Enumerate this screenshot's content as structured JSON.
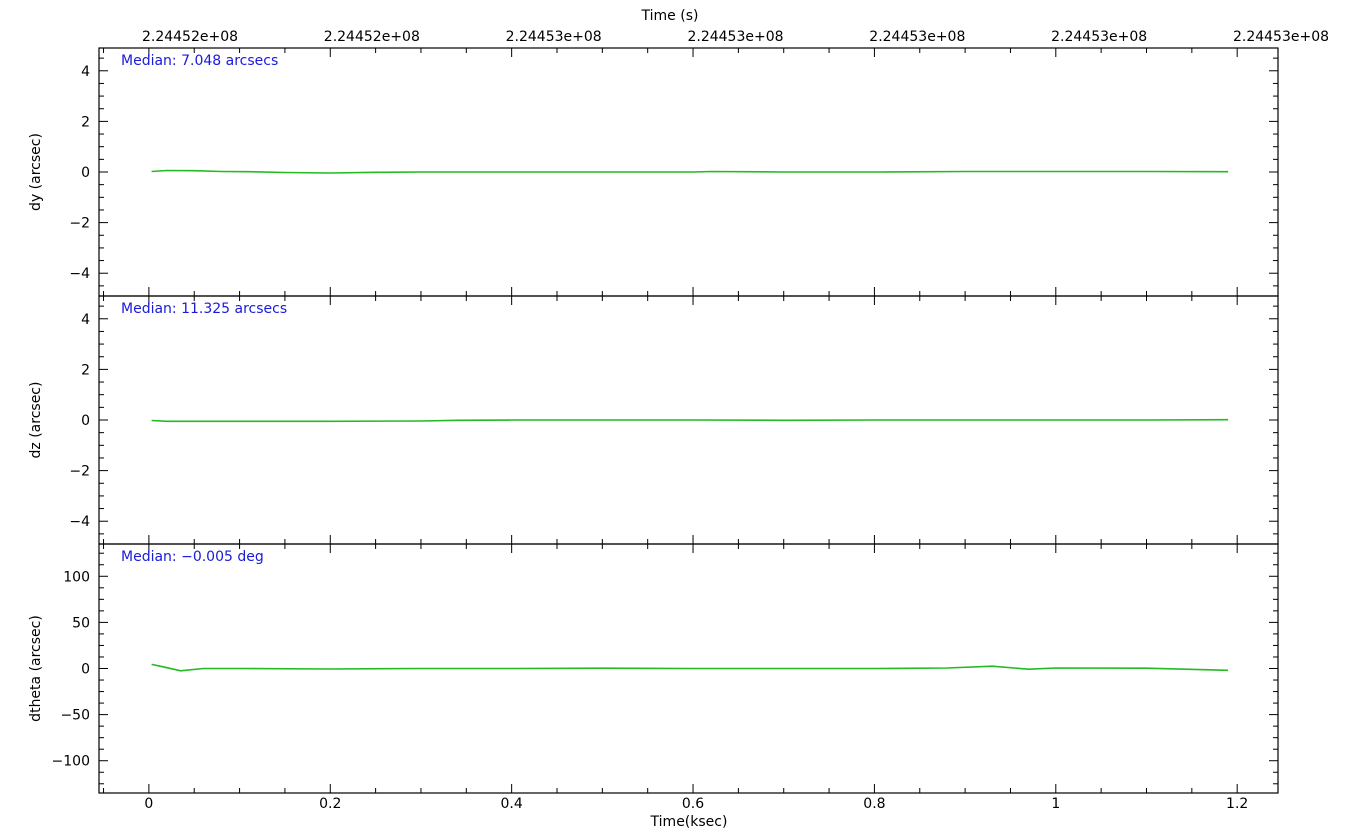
{
  "chart_data": {
    "type": "line",
    "top_axis": {
      "title": "Time (s)",
      "tick_labels": [
        "2.24452e+08",
        "2.24452e+08",
        "2.24453e+08",
        "2.24453e+08",
        "2.24453e+08",
        "2.24453e+08",
        "2.24453e+08"
      ]
    },
    "xlabel": "Time(ksec)",
    "xlim": [
      -0.055,
      1.245
    ],
    "xticks": [
      0,
      0.2,
      0.4,
      0.6,
      0.8,
      1,
      1.2
    ],
    "xtick_labels": [
      "0",
      "0.2",
      "0.4",
      "0.6",
      "0.8",
      "1",
      "1.2"
    ],
    "line_color": "#22bb22",
    "median_color": "#1a1adb",
    "panels": [
      {
        "ylabel": "dy (arcsec)",
        "median_text": "Median: 7.048 arcsecs",
        "ylim": [
          -4.9,
          4.9
        ],
        "yticks": [
          4,
          2,
          0,
          -2,
          -4
        ],
        "ytick_labels": [
          "4",
          "2",
          "0",
          "−2",
          "−4"
        ],
        "x": [
          0.003,
          0.02,
          0.05,
          0.08,
          0.11,
          0.15,
          0.2,
          0.25,
          0.3,
          0.4,
          0.5,
          0.6,
          0.62,
          0.7,
          0.8,
          0.9,
          1.0,
          1.1,
          1.19
        ],
        "y": [
          0.02,
          0.06,
          0.05,
          0.02,
          0.01,
          -0.02,
          -0.04,
          -0.01,
          0.0,
          0.0,
          0.0,
          0.0,
          0.02,
          0.0,
          0.0,
          0.02,
          0.02,
          0.02,
          0.01
        ]
      },
      {
        "ylabel": "dz (arcsec)",
        "median_text": "Median: 11.325 arcsecs",
        "ylim": [
          -4.9,
          4.9
        ],
        "yticks": [
          4,
          2,
          0,
          -2,
          -4
        ],
        "ytick_labels": [
          "4",
          "2",
          "0",
          "−2",
          "−4"
        ],
        "x": [
          0.003,
          0.02,
          0.1,
          0.2,
          0.3,
          0.34,
          0.4,
          0.5,
          0.6,
          0.7,
          0.8,
          0.9,
          1.0,
          1.1,
          1.19
        ],
        "y": [
          -0.02,
          -0.05,
          -0.05,
          -0.05,
          -0.04,
          -0.01,
          0.0,
          0.0,
          0.0,
          -0.01,
          0.0,
          0.0,
          0.0,
          0.0,
          0.01
        ]
      },
      {
        "ylabel": "dtheta (arcsec)",
        "median_text": "Median: −0.005 deg",
        "ylim": [
          -135,
          135
        ],
        "yticks": [
          100,
          50,
          0,
          -50,
          -100
        ],
        "ytick_labels": [
          "100",
          "50",
          "0",
          "−50",
          "−100"
        ],
        "x": [
          0.003,
          0.015,
          0.035,
          0.06,
          0.1,
          0.2,
          0.3,
          0.4,
          0.5,
          0.6,
          0.7,
          0.8,
          0.88,
          0.93,
          0.97,
          1.0,
          1.1,
          1.19
        ],
        "y": [
          4.5,
          2,
          -2.5,
          0,
          0,
          -0.5,
          0,
          0,
          0.3,
          0,
          0,
          0,
          0.5,
          2.5,
          -0.8,
          0.5,
          0.3,
          -2
        ]
      }
    ]
  }
}
